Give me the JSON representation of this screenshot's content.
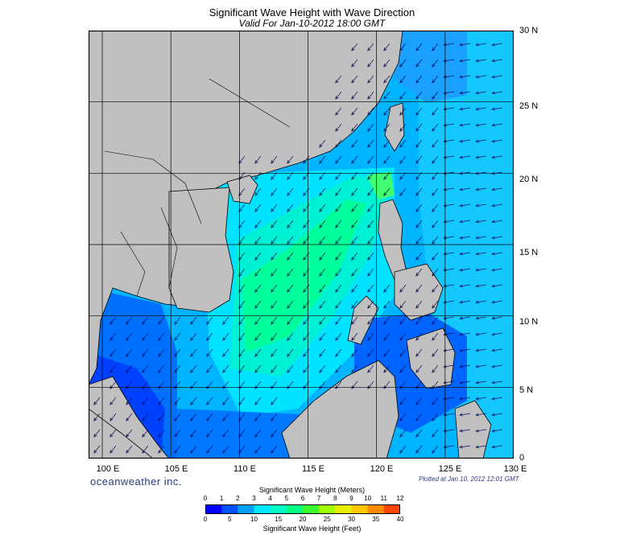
{
  "header": {
    "title": "Significant Wave Height with Wave Direction",
    "subtitle": "Valid For Jan-10-2012 18:00 GMT"
  },
  "map": {
    "lon_range": [
      99,
      130
    ],
    "lat_range": [
      0,
      30
    ],
    "lat_labels": [
      "30 N",
      "25 N",
      "20 N",
      "15 N",
      "10 N",
      "5 N",
      "0"
    ],
    "lon_labels": [
      "100 E",
      "105 E",
      "110 E",
      "115 E",
      "120 E",
      "125 E",
      "130 E"
    ],
    "land_color": "#c0c0c0",
    "arrow_direction": "toward south-west"
  },
  "branding": {
    "logo_text": "oceanweather inc.",
    "plotted_text": "Plotted at Jan 10, 2012 12:01 GMT"
  },
  "legend": {
    "meters_title": "Significant Wave Height (Meters)",
    "feet_title": "Significant Wave Height (Feet)",
    "meters_ticks": [
      "0",
      "1",
      "2",
      "3",
      "4",
      "5",
      "6",
      "7",
      "8",
      "9",
      "10",
      "11",
      "12"
    ],
    "feet_ticks": [
      "0",
      "5",
      "10",
      "15",
      "20",
      "25",
      "30",
      "35",
      "40"
    ],
    "colors": [
      "#0000ff",
      "#0050ff",
      "#00a0ff",
      "#00e6ff",
      "#00ffc8",
      "#00ff82",
      "#3cff32",
      "#a0ff00",
      "#e6f000",
      "#ffc800",
      "#ff8c00",
      "#ff4600"
    ]
  }
}
